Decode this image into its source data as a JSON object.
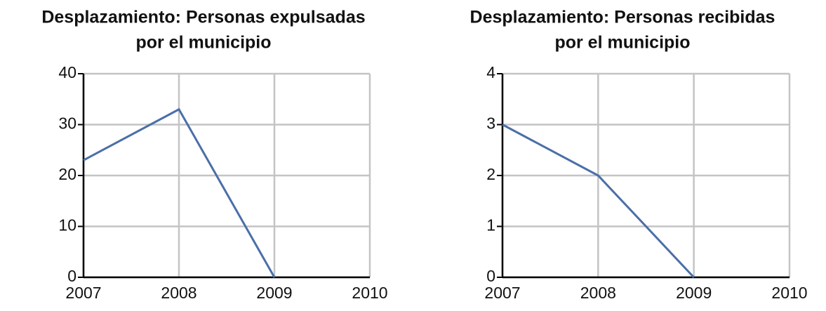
{
  "chart_data": [
    {
      "type": "line",
      "title": [
        "Desplazamiento: Personas expulsadas",
        "por el municipio"
      ],
      "x": [
        2007,
        2008,
        2009,
        2010
      ],
      "series": [
        {
          "color": "#4a6fa8",
          "values": [
            23,
            33,
            0,
            null
          ]
        }
      ],
      "xlim": [
        2007,
        2010
      ],
      "xticks": [
        2007,
        2008,
        2009,
        2010
      ],
      "ylim": [
        0,
        40
      ],
      "yticks": [
        0,
        10,
        20,
        30,
        40
      ],
      "grid": true
    },
    {
      "type": "line",
      "title": [
        "Desplazamiento: Personas recibidas",
        "por el municipio"
      ],
      "x": [
        2007,
        2008,
        2009,
        2010
      ],
      "series": [
        {
          "color": "#4a6fa8",
          "values": [
            3,
            2,
            0,
            null
          ]
        }
      ],
      "xlim": [
        2007,
        2010
      ],
      "xticks": [
        2007,
        2008,
        2009,
        2010
      ],
      "ylim": [
        0,
        4
      ],
      "yticks": [
        0,
        1,
        2,
        3,
        4
      ],
      "grid": true
    }
  ]
}
